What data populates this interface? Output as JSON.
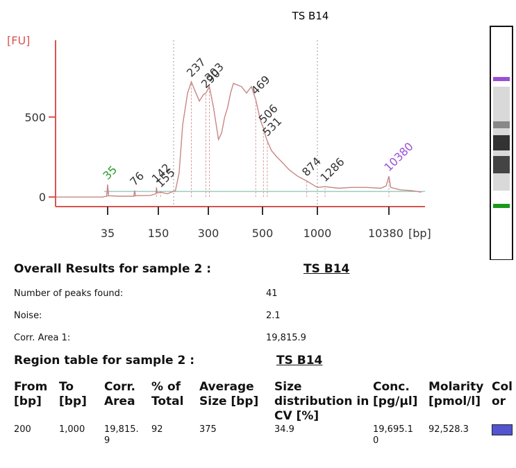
{
  "chart_data": {
    "type": "line",
    "title": "TS B14",
    "y_label": "[FU]",
    "x_unit": "[bp]",
    "log_x": true,
    "color": "#c98585",
    "axis_color": "#d9534f",
    "xlim": [
      8,
      30000
    ],
    "ylim": [
      -60,
      980
    ],
    "xticks": [
      35,
      150,
      300,
      500,
      1000,
      10380
    ],
    "yticks": [
      0,
      500
    ],
    "x": [
      8,
      30,
      34,
      35,
      36,
      50,
      74,
      76,
      78,
      120,
      140,
      142,
      145,
      155,
      170,
      190,
      200,
      210,
      225,
      237,
      250,
      265,
      280,
      290,
      303,
      315,
      330,
      340,
      350,
      360,
      370,
      380,
      395,
      410,
      430,
      450,
      469,
      490,
      506,
      520,
      531,
      560,
      600,
      650,
      700,
      780,
      874,
      950,
      1000,
      1286,
      2000,
      3000,
      5000,
      8000,
      9500,
      10380,
      11000,
      15000,
      22000,
      30000
    ],
    "values": [
      0,
      0,
      5,
      78,
      8,
      5,
      5,
      40,
      8,
      10,
      20,
      60,
      25,
      30,
      20,
      40,
      150,
      450,
      650,
      720,
      660,
      600,
      640,
      650,
      690,
      560,
      360,
      400,
      500,
      560,
      650,
      710,
      700,
      690,
      650,
      690,
      610,
      480,
      430,
      380,
      350,
      290,
      250,
      210,
      170,
      130,
      100,
      75,
      60,
      65,
      55,
      60,
      60,
      55,
      70,
      130,
      60,
      45,
      40,
      30
    ],
    "peaks": {
      "bp": [
        35,
        76,
        142,
        155,
        237,
        290,
        303,
        469,
        506,
        531,
        874,
        1286,
        10380
      ],
      "fu": [
        78,
        40,
        60,
        30,
        720,
        650,
        690,
        610,
        430,
        350,
        100,
        65,
        130
      ],
      "colors": [
        "#2a9d2a",
        "#333333",
        "#333333",
        "#333333",
        "#333333",
        "#333333",
        "#333333",
        "#333333",
        "#333333",
        "#333333",
        "#333333",
        "#333333",
        "#9b4fd6"
      ]
    }
  },
  "overall": {
    "title": "Overall Results for sample 2 :",
    "sample": "TS B14",
    "rows": [
      [
        "Number of peaks found:",
        "41"
      ],
      [
        "Noise:",
        "2.1"
      ],
      [
        "Corr. Area 1:",
        "19,815.9"
      ]
    ]
  },
  "region": {
    "title": "Region table for sample 2 :",
    "sample": "TS B14",
    "headers": [
      "From [bp]",
      "To [bp]",
      "Corr. Area",
      "% of Total",
      "Average Size [bp]",
      "Size distribution in CV [%]",
      "Conc. [pg/µl]",
      "Molarity [pmol/l]",
      "Color"
    ],
    "rows": [
      [
        "200",
        "1,000",
        "19,815.9",
        "92",
        "375",
        "34.9",
        "19,695.10",
        "92,528.3"
      ]
    ],
    "color": "#5454d0"
  }
}
